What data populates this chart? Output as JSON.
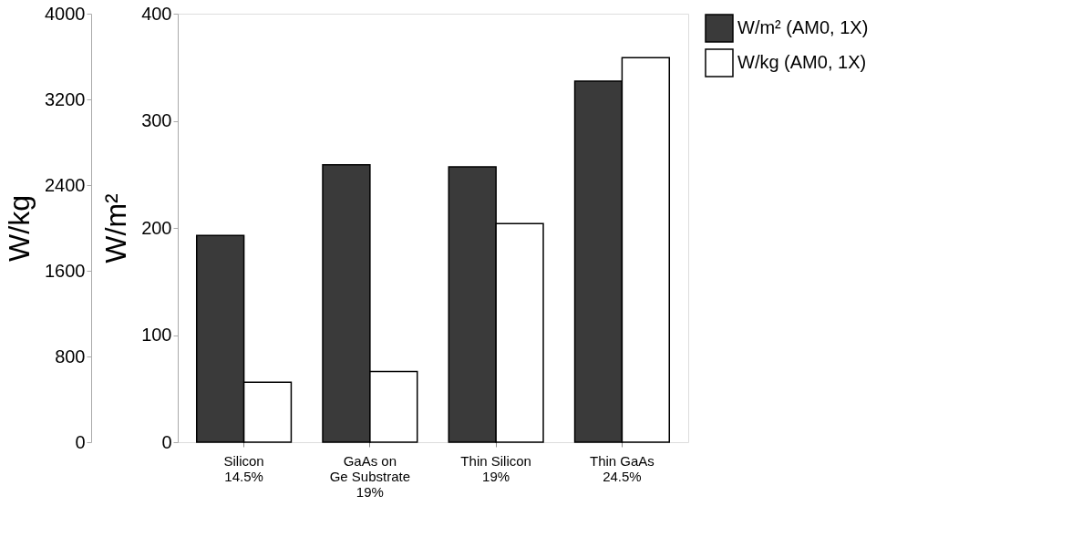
{
  "chart_data": {
    "type": "bar",
    "categories": [
      "Silicon\n14.5%",
      "GaAs   on\nGe  Substrate\n19%",
      "Thin   Silicon\n19%",
      "Thin   GaAs\n24.5%"
    ],
    "series": [
      {
        "name": "W/m² (AM0, 1X)",
        "color": "#3a3a3a",
        "values": [
          193,
          259,
          257,
          337
        ]
      },
      {
        "name": "W/kg (AM0, 1X)",
        "color": "#ffffff",
        "values": [
          560,
          660,
          2040,
          3590
        ],
        "axis": "y2"
      }
    ],
    "ylabel": "W/m²",
    "y2label": "W/kg",
    "ylim": [
      0,
      400
    ],
    "yticks": [
      0,
      100,
      200,
      300,
      400
    ],
    "y2lim": [
      0,
      4000
    ],
    "y2ticks": [
      0,
      800,
      1600,
      2400,
      3200,
      4000
    ],
    "legend": "right",
    "grid": false
  }
}
